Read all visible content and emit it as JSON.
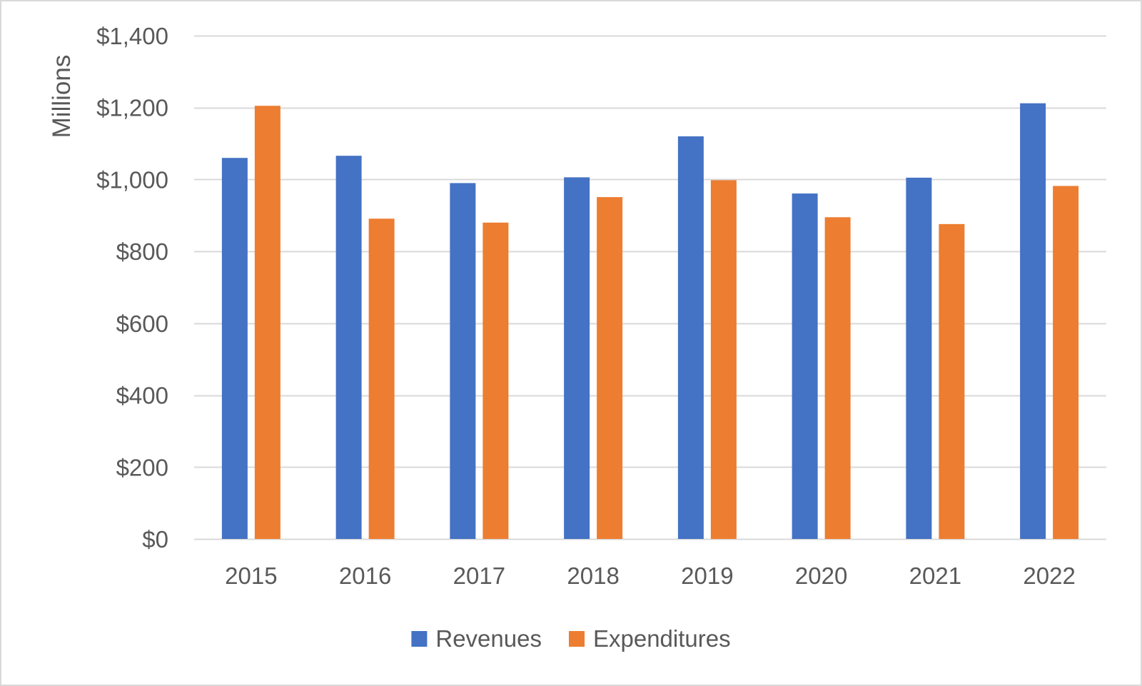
{
  "chart_data": {
    "type": "bar",
    "title": "",
    "xlabel": "",
    "ylabel": "Millions",
    "categories": [
      "2015",
      "2016",
      "2017",
      "2018",
      "2019",
      "2020",
      "2021",
      "2022"
    ],
    "series": [
      {
        "name": "Revenues",
        "color": "#4472c4",
        "values": [
          1060,
          1066,
          990,
          1006,
          1120,
          961,
          1005,
          1212
        ]
      },
      {
        "name": "Expenditures",
        "color": "#ed7d31",
        "values": [
          1205,
          891,
          880,
          951,
          998,
          895,
          876,
          982
        ]
      }
    ],
    "ylim": [
      0,
      1400
    ],
    "yticks": [
      0,
      200,
      400,
      600,
      800,
      1000,
      1200,
      1400
    ],
    "ytick_labels": [
      "$0",
      "$200",
      "$400",
      "$600",
      "$800",
      "$1,000",
      "$1,200",
      "$1,400"
    ],
    "grid": true,
    "grid_color": "#d9d9d9",
    "legend_position": "bottom"
  }
}
